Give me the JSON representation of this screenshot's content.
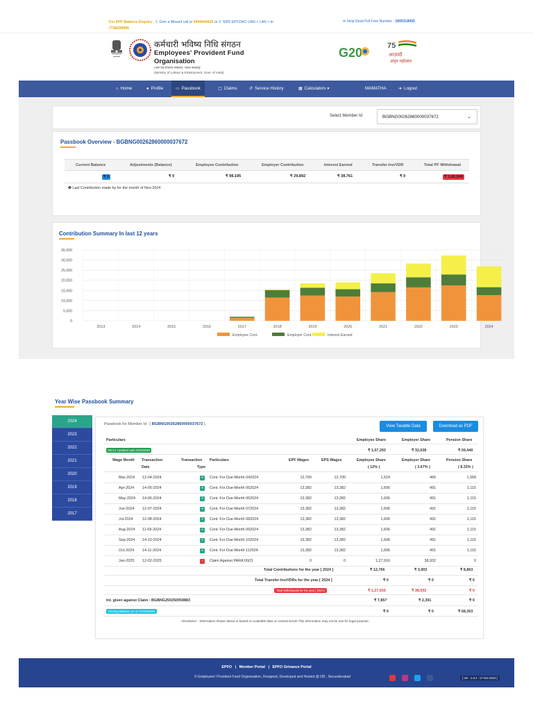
{
  "topbar": {
    "enquiry_label": "For EPF Balance Enquiry :",
    "enquiry_text_1": " 1. Give a Missed call to ",
    "enquiry_phone_1": "9966044425",
    "enquiry_text_2": " or 2. SMS EPFOHO UAN < LAN > to ",
    "enquiry_phone_2": "7738299899",
    "helpdesk_label": "Help Desk/Toll Free Number : ",
    "helpdesk_number": "1800118005"
  },
  "header": {
    "org_hindi": "कर्मचारी भविष्य निधि संगठन",
    "org_en_line1": "Employees' Provident Fund",
    "org_en_line2": "Organisation",
    "org_sub_hindi": "(श्रम एवं रोजगार मंत्रालय, भारत सरकार)",
    "org_sub_en": "(Ministry of Labour & Employment, Govt. of India)",
    "g20_label": "G20",
    "azadi_line1": "आज़ादी",
    "azadi_line2": "अमृत महोत्सव"
  },
  "nav": {
    "home": "Home",
    "profile": "Profile",
    "passbook": "Passbook",
    "claims": "Claims",
    "service_history": "Service History",
    "calculators": "Calculators",
    "user": "MAMATHA",
    "logout": "Logout"
  },
  "member_select": {
    "label": "Select Member Id",
    "value": "BGBNG00262860000037672"
  },
  "overview": {
    "title": "Passbook Overview - ",
    "member_id": "BGBNG00262860000037672",
    "headers": [
      "Current Balance",
      "Adjustments (Balance)",
      "Employee Contribution",
      "Employer Contribution",
      "Interest Earned",
      "Transfer-Ins/VDR",
      "Total PF Withdrawal"
    ],
    "values": [
      "₹ 0",
      "₹ 0",
      "₹ 98,195",
      "₹ 29,892",
      "₹ 38,761",
      "₹ 0",
      "₹ 1,66,848"
    ],
    "note": "Last Contribution made by for the month of Nov-2024"
  },
  "chart_title": "Contribution Summary In last 12 years",
  "chart_data": {
    "type": "bar",
    "stacked": true,
    "categories": [
      "2013",
      "2014",
      "2015",
      "2016",
      "2017",
      "2018",
      "2019",
      "2020",
      "2021",
      "2022",
      "2023",
      "2024"
    ],
    "series": [
      {
        "name": "Employee Cont.",
        "color": "#f0943c",
        "values": [
          0,
          0,
          0,
          0,
          1500,
          11500,
          12500,
          12000,
          14200,
          16500,
          17500,
          12700
        ]
      },
      {
        "name": "Employer Cont.",
        "color": "#4e7d3a",
        "values": [
          0,
          0,
          0,
          0,
          500,
          3600,
          3800,
          3600,
          4300,
          5000,
          5400,
          3900
        ]
      },
      {
        "name": "Interest Earned",
        "color": "#f4f049",
        "values": [
          0,
          0,
          0,
          0,
          0,
          500,
          2200,
          3400,
          5000,
          6800,
          9400,
          10300
        ]
      }
    ],
    "ylim": [
      0,
      35000
    ],
    "yticks": [
      "35,000",
      "30,000",
      "25,000",
      "20,000",
      "15,000",
      "10,000",
      "5,000",
      "0"
    ],
    "legend_position": "bottom",
    "grid": true
  },
  "yearwise": {
    "title": "Year Wise Passbook Summary",
    "years": [
      "2024",
      "2023",
      "2022",
      "2021",
      "2020",
      "2019",
      "2018",
      "2017"
    ],
    "member_label": "Passbook for Member Id : [ ",
    "member_id": "BGBNG00262860000037672",
    "member_close": " ]",
    "btn_taxable": "View Taxable Data",
    "btn_pdf": "Download as PDF",
    "summary_headers": [
      "Particulars",
      "Employee Share",
      "Employer Share",
      "Pension Share"
    ],
    "ob_label": "OB Int. Updated upto 01/04/2024",
    "ob_values": [
      "₹ 1,07,293",
      "₹ 32,638",
      "₹ 59,440"
    ],
    "col_headers": {
      "wage_month": "Wage Month",
      "txn_date_1": "Transaction",
      "txn_date_2": "Date",
      "txn_type_1": "Transaction",
      "txn_type_2": "Type",
      "particulars": "Particulars",
      "epf_wages": "EPF Wages",
      "eps_wages": "EPS Wages",
      "emp_share_1": "Employee Share",
      "emp_share_2": "( 12% )",
      "er_share_1": "Employer Share",
      "er_share_2": "( 3.67% )",
      "pen_share_1": "Pension Share",
      "pen_share_2": "( 8.33% )"
    },
    "rows": [
      {
        "month": "Mar-2024",
        "date": "12-04-2024",
        "type": "CR",
        "particulars": "Cont. For Due-Month 042024",
        "epf": "12,700",
        "eps": "12,700",
        "ee": "1,524",
        "er": "466",
        "pen": "1,058"
      },
      {
        "month": "Apr-2024",
        "date": "14-05-2024",
        "type": "CR",
        "particulars": "Cont. For Due-Month 052024",
        "epf": "13,382",
        "eps": "13,382",
        "ee": "1,606",
        "er": "491",
        "pen": "1,115"
      },
      {
        "month": "May-2024",
        "date": "14-06-2024",
        "type": "CR",
        "particulars": "Cont. For Due-Month 062024",
        "epf": "13,382",
        "eps": "13,382",
        "ee": "1,606",
        "er": "491",
        "pen": "1,115"
      },
      {
        "month": "Jun-2024",
        "date": "12-07-2024",
        "type": "CR",
        "particulars": "Cont. For Due-Month 072024",
        "epf": "13,382",
        "eps": "13,382",
        "ee": "1,606",
        "er": "491",
        "pen": "1,115"
      },
      {
        "month": "Jul-2024",
        "date": "12-08-2024",
        "type": "CR",
        "particulars": "Cont. For Due-Month 082024",
        "epf": "13,382",
        "eps": "13,382",
        "ee": "1,606",
        "er": "491",
        "pen": "1,115"
      },
      {
        "month": "Aug-2024",
        "date": "11-09-2024",
        "type": "CR",
        "particulars": "Cont. For Due-Month 092024",
        "epf": "13,382",
        "eps": "13,382",
        "ee": "1,606",
        "er": "491",
        "pen": "1,115"
      },
      {
        "month": "Sep-2024",
        "date": "14-10-2024",
        "type": "CR",
        "particulars": "Cont. For Due-Month 102024",
        "epf": "13,382",
        "eps": "13,382",
        "ee": "1,606",
        "er": "491",
        "pen": "1,115"
      },
      {
        "month": "Oct-2024",
        "date": "14-11-2024",
        "type": "CR",
        "particulars": "Cont. For Due-Month 112024",
        "epf": "13,382",
        "eps": "13,382",
        "ee": "1,606",
        "er": "491",
        "pen": "1,115"
      },
      {
        "month": "Jan-2025",
        "date": "12-02-2025",
        "type": "DR",
        "particulars": "Claim Against PARA 69(2)",
        "epf": "0",
        "eps": "0",
        "ee": "1,27,916",
        "er": "38,932",
        "pen": "0"
      }
    ],
    "total_contrib_label": "Total Contributions for the year [ 2024 ]",
    "total_contrib": [
      "₹ 12,766",
      "₹ 3,903",
      "₹ 8,863"
    ],
    "total_transfer_label": "Total Transfer-Ins/VDRs for the year [ 2024 ]",
    "total_transfer": [
      "₹ 0",
      "₹ 0",
      "₹ 0"
    ],
    "total_withdraw_label": "Total Withdrawals for the year [ 2024 ]",
    "total_withdraw": [
      "₹ 1,27,916",
      "₹ 38,932",
      "₹ 0"
    ],
    "interest_label": "Int. given against Claim : BGBNG250250059883",
    "interest": [
      "₹ 7,857",
      "₹ 2,391",
      "₹ 0"
    ],
    "closing_label": "Closing Balance as on 31/03/2025",
    "closing": [
      "₹ 0",
      "₹ 0",
      "₹ 68,303"
    ],
    "disclaimer": "Disclaimer - Information shown above is based on available data on central server.This information may not be use for legal purpose."
  },
  "footer": {
    "link_epfo": "EPFO",
    "link_member": "Member Portal",
    "link_grievance": "EPFO Grivance Portal",
    "copyright": "© Employees' Provident Fund Organisation, Designed, Developed and Hosted @ DR , Secunderabad",
    "version": "[ Ver : 1.0.4 : 17-Oct-2024 ]"
  }
}
